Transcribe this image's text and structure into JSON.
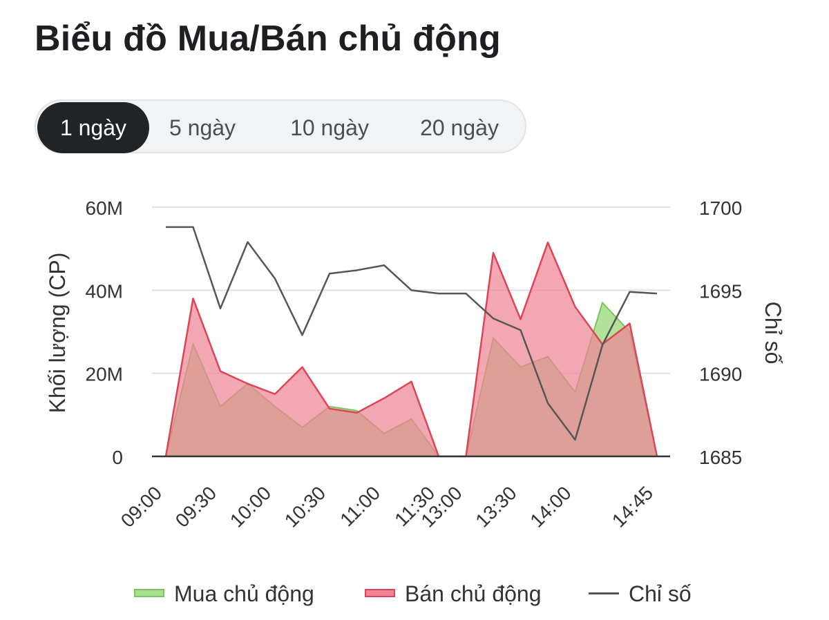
{
  "title": "Biểu đồ Mua/Bán chủ động",
  "tabs": [
    {
      "label": "1 ngày",
      "active": true
    },
    {
      "label": "5 ngày",
      "active": false
    },
    {
      "label": "10 ngày",
      "active": false
    },
    {
      "label": "20 ngày",
      "active": false
    }
  ],
  "colors": {
    "buy_fill": "#a8df8f",
    "buy_stroke": "#7cc35e",
    "sell_fill": "#ee8595",
    "sell_stroke": "#dd4455",
    "index_line": "#555555",
    "grid": "#e0e0e0"
  },
  "chart_data": {
    "type": "area",
    "ylabel_left": "Khối lượng (CP)",
    "ylabel_right": "Chỉ số",
    "yticks_left": [
      "60M",
      "40M",
      "20M",
      "0"
    ],
    "yticks_right": [
      "1700",
      "1695",
      "1690",
      "1685"
    ],
    "ylim_left": [
      0,
      60000000
    ],
    "ylim_right": [
      1685,
      1700
    ],
    "x_tick_labels": [
      "09:00",
      "09:30",
      "10:00",
      "10:30",
      "11:00",
      "11:30",
      "13:00",
      "13:30",
      "14:00",
      "14:45"
    ],
    "x": [
      "09:00",
      "09:15",
      "09:30",
      "09:45",
      "10:00",
      "10:15",
      "10:30",
      "10:45",
      "11:00",
      "11:15",
      "11:30",
      "13:00",
      "13:15",
      "13:30",
      "13:45",
      "14:00",
      "14:15",
      "14:30",
      "14:45"
    ],
    "grid": true,
    "legend_position": "bottom",
    "series": [
      {
        "name": "Mua chủ động",
        "type": "area",
        "axis": "left",
        "values": [
          0,
          27000000,
          12000000,
          17500000,
          12000000,
          7000000,
          12000000,
          11000000,
          5500000,
          9000000,
          0,
          0,
          28500000,
          21500000,
          24000000,
          15500000,
          37000000,
          30000000,
          0
        ]
      },
      {
        "name": "Bán chủ động",
        "type": "area",
        "axis": "left",
        "values": [
          0,
          38000000,
          20500000,
          17500000,
          15000000,
          21500000,
          11500000,
          10500000,
          14000000,
          18000000,
          0,
          0,
          49000000,
          33000000,
          51500000,
          36000000,
          27000000,
          32000000,
          0
        ]
      },
      {
        "name": "Chỉ số",
        "type": "line",
        "axis": "right",
        "values": [
          1698.8,
          1698.8,
          1693.9,
          1697.9,
          1695.7,
          1692.3,
          1696.0,
          1696.2,
          1696.5,
          1695.0,
          1694.8,
          1694.8,
          1693.3,
          1692.6,
          1688.2,
          1686.0,
          1691.7,
          1694.9,
          1694.8
        ]
      }
    ]
  }
}
